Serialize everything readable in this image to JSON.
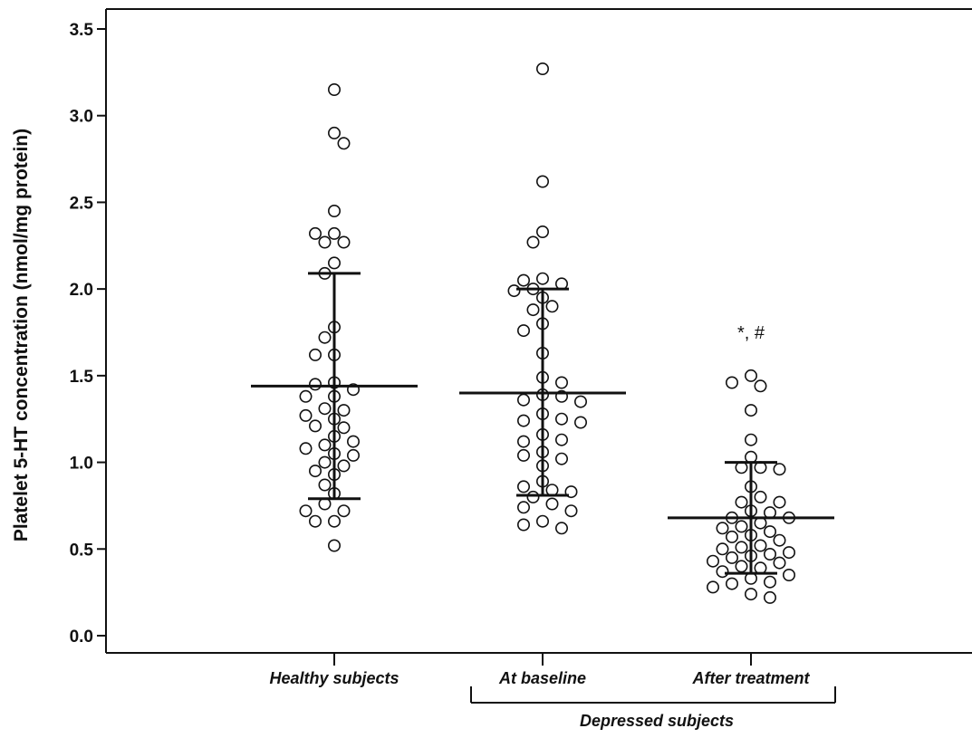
{
  "chart_data": {
    "type": "scatter",
    "ylabel": "Platelet 5-HT concentration (nmol/mg protein)",
    "ylim": [
      0,
      3.6
    ],
    "yticks": [
      "0.0",
      "0.5",
      "1.0",
      "1.5",
      "2.0",
      "2.5",
      "3.0",
      "3.5"
    ],
    "grid": false,
    "categories": [
      "Healthy subjects",
      "At baseline",
      "After treatment"
    ],
    "bracket_label": "Depressed subjects",
    "bracket_groups": [
      "At baseline",
      "After treatment"
    ],
    "significance_annotation": "*, #",
    "annotated_group": "After treatment",
    "marker": "open-circle",
    "line_color": "#111111",
    "series": [
      {
        "category": "Healthy subjects",
        "mean": 1.44,
        "sd_upper": 2.09,
        "sd_lower": 0.79,
        "values": [
          3.15,
          2.9,
          2.84,
          2.45,
          2.32,
          2.32,
          2.27,
          2.27,
          2.15,
          2.09,
          1.78,
          1.72,
          1.62,
          1.62,
          1.46,
          1.45,
          1.42,
          1.38,
          1.38,
          1.31,
          1.3,
          1.27,
          1.25,
          1.21,
          1.2,
          1.15,
          1.12,
          1.1,
          1.08,
          1.05,
          1.04,
          1.0,
          0.98,
          0.95,
          0.93,
          0.87,
          0.82,
          0.76,
          0.72,
          0.72,
          0.66,
          0.66,
          0.52
        ]
      },
      {
        "category": "At baseline",
        "mean": 1.4,
        "sd_upper": 2.0,
        "sd_lower": 0.81,
        "values": [
          3.27,
          2.62,
          2.33,
          2.27,
          2.06,
          2.05,
          2.03,
          2.0,
          1.99,
          1.95,
          1.9,
          1.88,
          1.8,
          1.76,
          1.63,
          1.49,
          1.46,
          1.39,
          1.38,
          1.36,
          1.35,
          1.28,
          1.25,
          1.24,
          1.23,
          1.16,
          1.13,
          1.12,
          1.06,
          1.04,
          1.02,
          0.98,
          0.89,
          0.86,
          0.84,
          0.83,
          0.8,
          0.76,
          0.74,
          0.72,
          0.66,
          0.64,
          0.62
        ]
      },
      {
        "category": "After treatment",
        "mean": 0.68,
        "sd_upper": 1.0,
        "sd_lower": 0.36,
        "values": [
          1.5,
          1.46,
          1.44,
          1.3,
          1.13,
          1.03,
          0.97,
          0.97,
          0.96,
          0.86,
          0.8,
          0.77,
          0.77,
          0.72,
          0.71,
          0.68,
          0.68,
          0.65,
          0.63,
          0.62,
          0.6,
          0.58,
          0.57,
          0.55,
          0.52,
          0.51,
          0.5,
          0.48,
          0.47,
          0.46,
          0.45,
          0.43,
          0.42,
          0.4,
          0.39,
          0.37,
          0.35,
          0.33,
          0.31,
          0.3,
          0.28,
          0.24,
          0.22
        ]
      }
    ]
  }
}
